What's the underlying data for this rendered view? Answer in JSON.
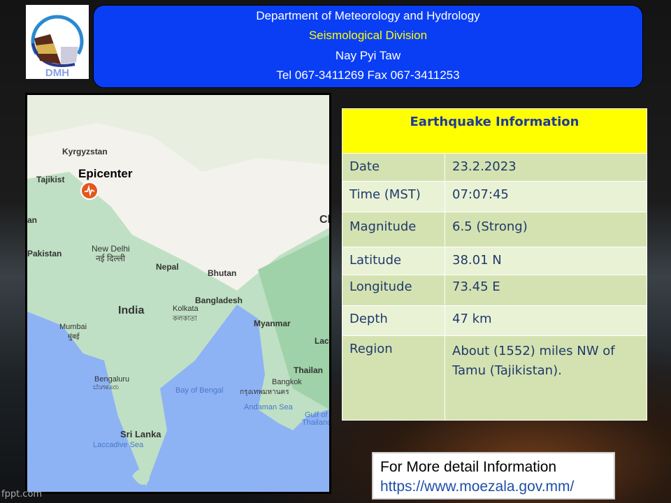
{
  "header": {
    "logo_text": "DMH",
    "line1": "Department of Meteorology and Hydrology",
    "line2": "Seismological Division",
    "line3": "Nay Pyi Taw",
    "line4": "Tel 067-3411269 Fax 067-3411253"
  },
  "map": {
    "epicenter_label": "Epicenter",
    "labels": [
      "Kyrgyzstan",
      "Tajikist",
      "an",
      "Pakistan",
      "New Delhi",
      "नई दिल्ली",
      "Nepal",
      "Bhutan",
      "Bangladesh",
      "India",
      "Kolkata",
      "কলকাতা",
      "Myanmar",
      "Mumbai",
      "मुंबई",
      "Lac",
      "Thailan",
      "Bengaluru",
      "ಬೆಂಗಳೂರು",
      "Bangkok",
      "กรุงเทพมหานคร",
      "Sri Lanka",
      "Ch"
    ],
    "sea_labels": [
      "Bay of Bengal",
      "Andaman Sea",
      "Gulf of",
      "Thailand",
      "Laccadive Sea"
    ]
  },
  "table": {
    "title": "Earthquake Information",
    "rows": [
      {
        "label": "Date",
        "value": "23.2.2023"
      },
      {
        "label": "Time (MST)",
        "value": "07:07:45"
      },
      {
        "label": "Magnitude",
        "value": "6.5  (Strong)"
      },
      {
        "label": "Latitude",
        "value": "38.01 N"
      },
      {
        "label": "Longitude",
        "value": "73.45 E"
      },
      {
        "label": "Depth",
        "value": "47 km"
      },
      {
        "label": "Region",
        "value": "About (1552) miles NW of Tamu (Tajikistan)."
      }
    ]
  },
  "footer": {
    "text": "For More detail Information",
    "link": "https://www.moezala.gov.mm/"
  },
  "watermark": "fppt.com",
  "colors": {
    "banner": "#0a3ef5",
    "subtitle": "#ffff00",
    "table_header": "#ffff00",
    "link": "#1f4fa8"
  }
}
